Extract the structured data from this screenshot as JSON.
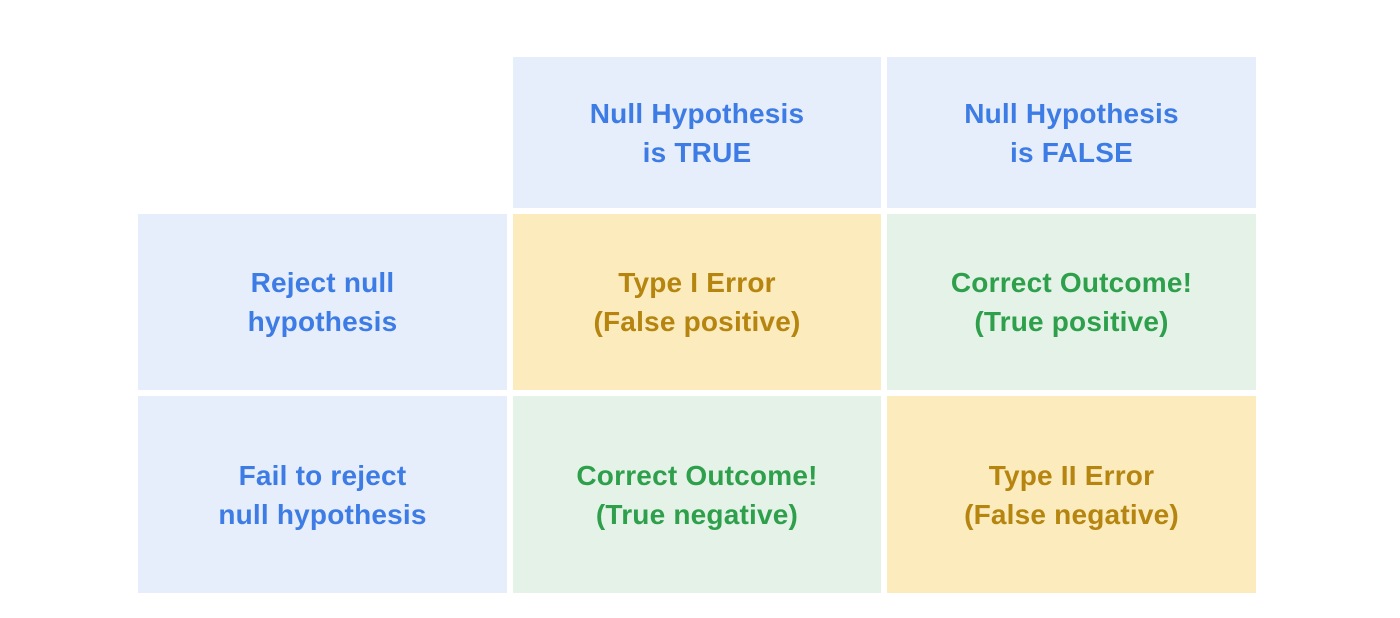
{
  "palette": {
    "page_bg": "#FFFFFF",
    "blue_bg": "#E7EEFB",
    "blue_text": "#3D7CE4",
    "yellow_bg": "#FBEBBD",
    "yellow_text": "#B5850F",
    "green_bg": "#E4F2E7",
    "green_text": "#2EA04C"
  },
  "matrix": {
    "column_headers": [
      {
        "line1": "Null Hypothesis",
        "line2": "is TRUE"
      },
      {
        "line1": "Null Hypothesis",
        "line2": "is FALSE"
      }
    ],
    "row_headers": [
      {
        "line1": "Reject null",
        "line2": "hypothesis"
      },
      {
        "line1": "Fail to reject",
        "line2": "null hypothesis"
      }
    ],
    "cells": [
      [
        {
          "line1": "Type I Error",
          "line2": "(False positive)",
          "variant": "warning"
        },
        {
          "line1": "Correct Outcome!",
          "line2": "(True positive)",
          "variant": "success"
        }
      ],
      [
        {
          "line1": "Correct Outcome!",
          "line2": "(True negative)",
          "variant": "success"
        },
        {
          "line1": "Type II Error",
          "line2": "(False negative)",
          "variant": "warning"
        }
      ]
    ]
  }
}
